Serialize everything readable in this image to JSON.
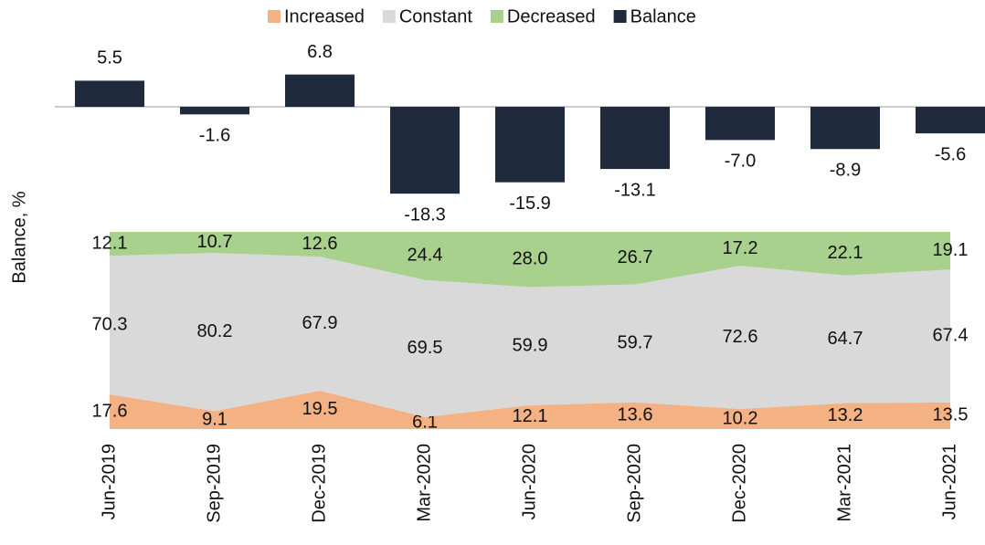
{
  "chart_data": [
    {
      "type": "bar",
      "y_label": "Balance, %",
      "series": [
        {
          "name": "Balance",
          "color": "#1f2a3c",
          "values": [
            5.5,
            -1.6,
            6.8,
            -18.3,
            -15.9,
            -13.1,
            -7.0,
            -8.9,
            -5.6
          ],
          "value_labels": [
            "5.5",
            "-1.6",
            "6.8",
            "-18.3",
            "-15.9",
            "-13.1",
            "-7.0",
            "-8.9",
            "-5.6"
          ]
        }
      ],
      "ylim": [
        -25,
        10
      ]
    },
    {
      "type": "stacked_area",
      "categories": [
        "Jun-2019",
        "Sep-2019",
        "Dec-2019",
        "Mar-2020",
        "Jun-2020",
        "Sep-2020",
        "Dec-2020",
        "Mar-2021",
        "Jun-2021"
      ],
      "series": [
        {
          "name": "Increased",
          "color": "#f4b183",
          "values": [
            17.6,
            9.1,
            19.5,
            6.1,
            12.1,
            13.6,
            10.2,
            13.2,
            13.5
          ],
          "value_labels": [
            "17.6",
            "9.1",
            "19.5",
            "6.1",
            "12.1",
            "13.6",
            "10.2",
            "13.2",
            "13.5"
          ]
        },
        {
          "name": "Constant",
          "color": "#d9d9d9",
          "values": [
            70.3,
            80.2,
            67.9,
            69.5,
            59.9,
            59.7,
            72.6,
            64.7,
            67.4
          ],
          "value_labels": [
            "70.3",
            "80.2",
            "67.9",
            "69.5",
            "59.9",
            "59.7",
            "72.6",
            "64.7",
            "67.4"
          ]
        },
        {
          "name": "Decreased",
          "color": "#a9d18e",
          "values": [
            12.1,
            10.7,
            12.6,
            24.4,
            28.0,
            26.7,
            17.2,
            22.1,
            19.1
          ],
          "value_labels": [
            "12.1",
            "10.7",
            "12.6",
            "24.4",
            "28.0",
            "26.7",
            "17.2",
            "22.1",
            "19.1"
          ]
        }
      ],
      "ylim": [
        0,
        100
      ]
    }
  ]
}
